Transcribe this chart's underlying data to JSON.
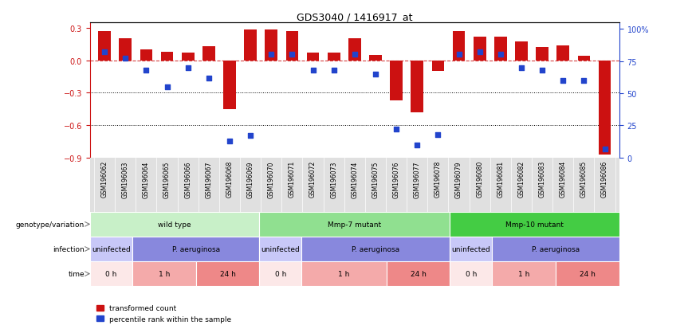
{
  "title": "GDS3040 / 1416917_at",
  "samples": [
    "GSM196062",
    "GSM196063",
    "GSM196064",
    "GSM196065",
    "GSM196066",
    "GSM196067",
    "GSM196068",
    "GSM196069",
    "GSM196070",
    "GSM196071",
    "GSM196072",
    "GSM196073",
    "GSM196074",
    "GSM196075",
    "GSM196076",
    "GSM196077",
    "GSM196078",
    "GSM196079",
    "GSM196080",
    "GSM196081",
    "GSM196082",
    "GSM196083",
    "GSM196084",
    "GSM196085",
    "GSM196086"
  ],
  "bar_values": [
    0.27,
    0.2,
    0.1,
    0.08,
    0.07,
    0.13,
    -0.45,
    0.28,
    0.28,
    0.27,
    0.07,
    0.07,
    0.2,
    0.05,
    -0.37,
    -0.48,
    -0.1,
    0.27,
    0.22,
    0.22,
    0.17,
    0.12,
    0.14,
    0.04,
    -0.87
  ],
  "blue_values": [
    82,
    77,
    68,
    55,
    70,
    62,
    13,
    17,
    80,
    80,
    68,
    68,
    80,
    65,
    22,
    10,
    18,
    80,
    82,
    80,
    70,
    68,
    60,
    60,
    7
  ],
  "ylim_left": [
    -0.9,
    0.35
  ],
  "ylim_right": [
    0,
    105
  ],
  "yticks_left": [
    0.3,
    0.0,
    -0.3,
    -0.6,
    -0.9
  ],
  "yticks_right": [
    100,
    75,
    50,
    25,
    0
  ],
  "ytick_labels_right": [
    "100%",
    "75",
    "50",
    "25",
    "0"
  ],
  "hline_y": 0.0,
  "dotted_lines": [
    -0.3,
    -0.6
  ],
  "bar_color": "#cc1111",
  "blue_color": "#2244cc",
  "background_color": "#ffffff",
  "label_bg_color": "#e0e0e0",
  "genotype_row": {
    "label": "genotype/variation",
    "groups": [
      {
        "text": "wild type",
        "start": 0,
        "end": 8,
        "color": "#c8f0c8"
      },
      {
        "text": "Mmp-7 mutant",
        "start": 8,
        "end": 17,
        "color": "#90e090"
      },
      {
        "text": "Mmp-10 mutant",
        "start": 17,
        "end": 25,
        "color": "#44cc44"
      }
    ]
  },
  "infection_row": {
    "label": "infection",
    "groups": [
      {
        "text": "uninfected",
        "start": 0,
        "end": 2,
        "color": "#c8c8f8"
      },
      {
        "text": "P. aeruginosa",
        "start": 2,
        "end": 8,
        "color": "#8888dd"
      },
      {
        "text": "uninfected",
        "start": 8,
        "end": 10,
        "color": "#c8c8f8"
      },
      {
        "text": "P. aeruginosa",
        "start": 10,
        "end": 17,
        "color": "#8888dd"
      },
      {
        "text": "uninfected",
        "start": 17,
        "end": 19,
        "color": "#c8c8f8"
      },
      {
        "text": "P. aeruginosa",
        "start": 19,
        "end": 25,
        "color": "#8888dd"
      }
    ]
  },
  "time_row": {
    "label": "time",
    "groups": [
      {
        "text": "0 h",
        "start": 0,
        "end": 2,
        "color": "#fce8e8"
      },
      {
        "text": "1 h",
        "start": 2,
        "end": 5,
        "color": "#f4aaaa"
      },
      {
        "text": "24 h",
        "start": 5,
        "end": 8,
        "color": "#ee8888"
      },
      {
        "text": "0 h",
        "start": 8,
        "end": 10,
        "color": "#fce8e8"
      },
      {
        "text": "1 h",
        "start": 10,
        "end": 14,
        "color": "#f4aaaa"
      },
      {
        "text": "24 h",
        "start": 14,
        "end": 17,
        "color": "#ee8888"
      },
      {
        "text": "0 h",
        "start": 17,
        "end": 19,
        "color": "#fce8e8"
      },
      {
        "text": "1 h",
        "start": 19,
        "end": 22,
        "color": "#f4aaaa"
      },
      {
        "text": "24 h",
        "start": 22,
        "end": 25,
        "color": "#ee8888"
      }
    ]
  },
  "legend": [
    {
      "label": "transformed count",
      "color": "#cc1111"
    },
    {
      "label": "percentile rank within the sample",
      "color": "#2244cc"
    }
  ]
}
